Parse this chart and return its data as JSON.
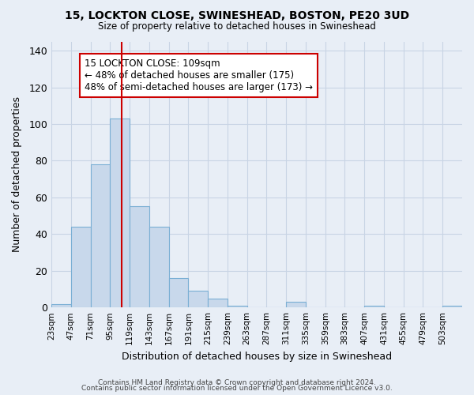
{
  "title": "15, LOCKTON CLOSE, SWINESHEAD, BOSTON, PE20 3UD",
  "subtitle": "Size of property relative to detached houses in Swineshead",
  "xlabel": "Distribution of detached houses by size in Swineshead",
  "ylabel": "Number of detached properties",
  "bin_edges": [
    23,
    47,
    71,
    95,
    119,
    143,
    167,
    191,
    215,
    239,
    263,
    287,
    311,
    335,
    359,
    383,
    407,
    431,
    455,
    479,
    503,
    527
  ],
  "bin_labels": [
    "23sqm",
    "47sqm",
    "71sqm",
    "95sqm",
    "119sqm",
    "143sqm",
    "167sqm",
    "191sqm",
    "215sqm",
    "239sqm",
    "263sqm",
    "287sqm",
    "311sqm",
    "335sqm",
    "359sqm",
    "383sqm",
    "407sqm",
    "431sqm",
    "455sqm",
    "479sqm",
    "503sqm"
  ],
  "counts": [
    2,
    44,
    78,
    103,
    55,
    44,
    16,
    9,
    5,
    1,
    0,
    0,
    3,
    0,
    0,
    0,
    1,
    0,
    0,
    0,
    1
  ],
  "bar_color": "#c8d8eb",
  "bar_edge_color": "#7aafd4",
  "property_value": 109,
  "red_line_color": "#cc0000",
  "annotation_box_text": "15 LOCKTON CLOSE: 109sqm\n← 48% of detached houses are smaller (175)\n48% of semi-detached houses are larger (173) →",
  "annotation_box_facecolor": "#ffffff",
  "annotation_box_edgecolor": "#cc0000",
  "ylim": [
    0,
    145
  ],
  "yticks": [
    0,
    20,
    40,
    60,
    80,
    100,
    120,
    140
  ],
  "grid_color": "#c8d4e4",
  "background_color": "#e8eef6",
  "plot_bg_color": "#e8eef6",
  "footer_line1": "Contains HM Land Registry data © Crown copyright and database right 2024.",
  "footer_line2": "Contains public sector information licensed under the Open Government Licence v3.0."
}
